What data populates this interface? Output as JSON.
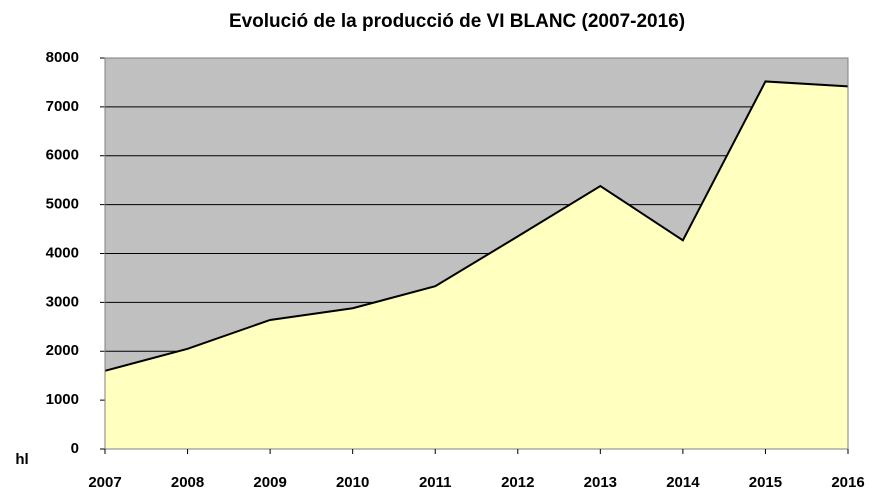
{
  "chart_data": {
    "type": "area",
    "title": "Evolució de la producció de VI BLANC (2007-2016)",
    "ylabel": "hl",
    "x": [
      2007,
      2008,
      2009,
      2010,
      2011,
      2012,
      2013,
      2014,
      2015,
      2016
    ],
    "values": [
      1600,
      2050,
      2640,
      2880,
      3330,
      4350,
      5380,
      4270,
      7520,
      7420
    ],
    "xlim": [
      2007,
      2016
    ],
    "xticks": [
      2007,
      2008,
      2009,
      2010,
      2011,
      2012,
      2013,
      2014,
      2015,
      2016
    ],
    "ylim": [
      0,
      8000
    ],
    "yticks": [
      0,
      1000,
      2000,
      3000,
      4000,
      5000,
      6000,
      7000,
      8000
    ],
    "grid": true,
    "plot_background": "#c0c0c0",
    "color": "#ffffc0",
    "line_color": "#000000"
  }
}
